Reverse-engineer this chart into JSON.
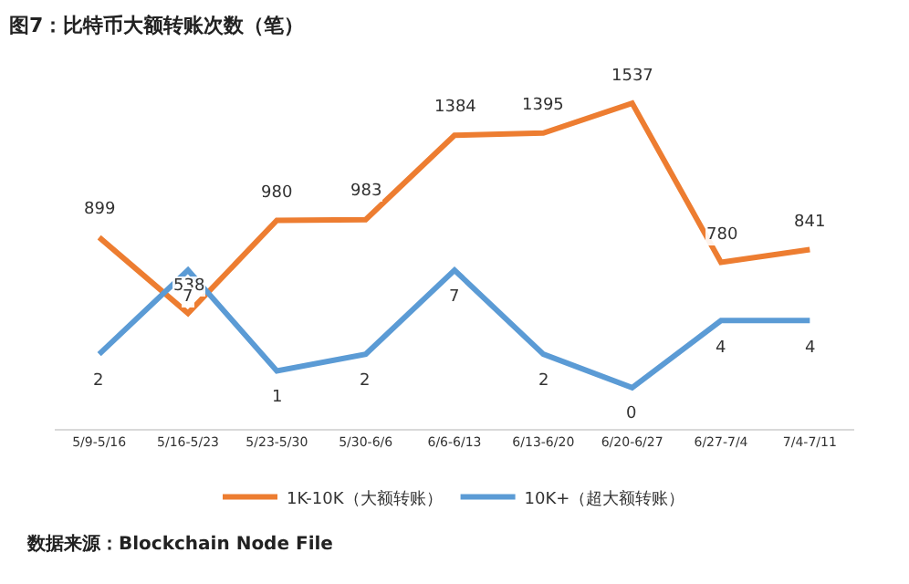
{
  "chart_data": {
    "type": "line",
    "title": "图7：比特币大额转账次数（笔）",
    "categories": [
      "5/9-5/16",
      "5/16-5/23",
      "5/23-5/30",
      "5/30-6/6",
      "6/6-6/13",
      "6/13-6/20",
      "6/20-6/27",
      "6/27-7/4",
      "7/4-7/11"
    ],
    "series": [
      {
        "name": "1K-10K（大额转账）",
        "color": "#ed7d31",
        "values": [
          899,
          538,
          980,
          983,
          1384,
          1395,
          1537,
          780,
          841
        ]
      },
      {
        "name": "10K+（超大额转账）",
        "color": "#5b9bd5",
        "axis": "y2",
        "values": [
          2,
          7,
          1,
          2,
          7,
          2,
          0,
          4,
          4
        ]
      }
    ],
    "data_labels": true,
    "legend": "bottom",
    "marker": "none",
    "line_style": "solid",
    "tick_labels": "x",
    "annotations": [
      "数据来源：Blockchain Node File"
    ]
  }
}
